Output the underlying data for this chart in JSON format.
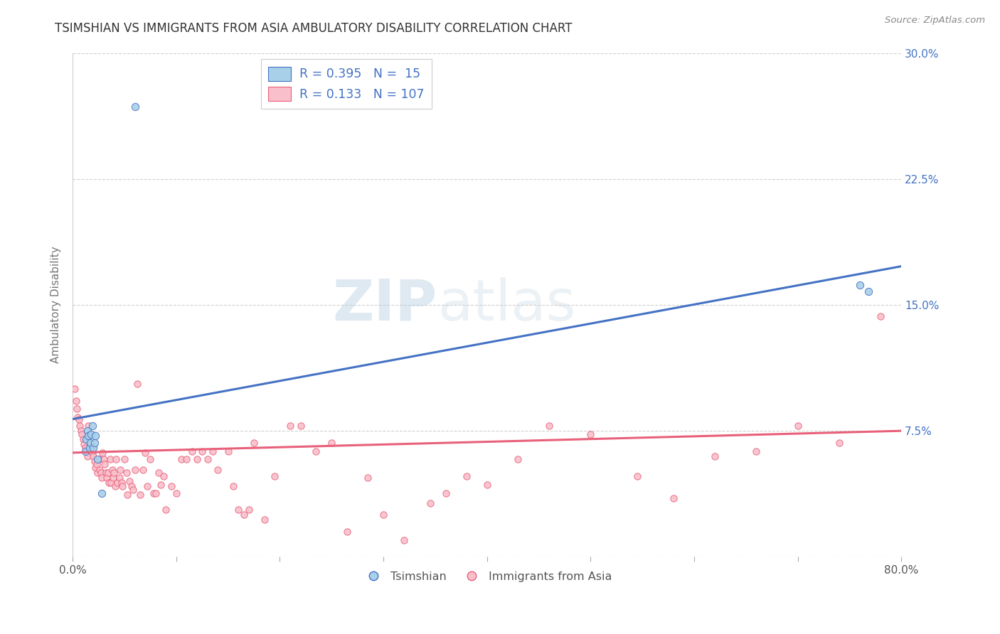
{
  "title": "TSIMSHIAN VS IMMIGRANTS FROM ASIA AMBULATORY DISABILITY CORRELATION CHART",
  "source": "Source: ZipAtlas.com",
  "ylabel": "Ambulatory Disability",
  "xmin": 0.0,
  "xmax": 0.8,
  "ymin": 0.0,
  "ymax": 0.3,
  "yticks": [
    0.0,
    0.075,
    0.15,
    0.225,
    0.3
  ],
  "ytick_labels": [
    "",
    "7.5%",
    "15.0%",
    "22.5%",
    "30.0%"
  ],
  "xtick_positions": [
    0.0,
    0.1,
    0.2,
    0.3,
    0.4,
    0.5,
    0.6,
    0.7,
    0.8
  ],
  "xtick_labels": [
    "0.0%",
    "",
    "",
    "",
    "",
    "",
    "",
    "",
    "80.0%"
  ],
  "color_blue": "#a8d0e8",
  "color_pink": "#f9c0cb",
  "line_blue": "#4472c4",
  "line_pink": "#e8607a",
  "watermark_zip": "ZIP",
  "watermark_atlas": "atlas",
  "legend_labels": [
    "Tsimshian",
    "Immigrants from Asia"
  ],
  "tsimshian_x": [
    0.012,
    0.013,
    0.014,
    0.015,
    0.016,
    0.017,
    0.018,
    0.019,
    0.02,
    0.021,
    0.022,
    0.024,
    0.028,
    0.06,
    0.76,
    0.768
  ],
  "tsimshian_y": [
    0.063,
    0.07,
    0.075,
    0.072,
    0.065,
    0.068,
    0.073,
    0.078,
    0.065,
    0.068,
    0.072,
    0.058,
    0.038,
    0.268,
    0.162,
    0.158
  ],
  "asia_x": [
    0.002,
    0.003,
    0.004,
    0.005,
    0.006,
    0.007,
    0.008,
    0.009,
    0.01,
    0.011,
    0.012,
    0.013,
    0.014,
    0.015,
    0.016,
    0.017,
    0.018,
    0.019,
    0.02,
    0.021,
    0.022,
    0.023,
    0.024,
    0.025,
    0.026,
    0.027,
    0.028,
    0.029,
    0.03,
    0.031,
    0.032,
    0.033,
    0.034,
    0.035,
    0.036,
    0.037,
    0.038,
    0.039,
    0.04,
    0.041,
    0.042,
    0.043,
    0.045,
    0.046,
    0.047,
    0.048,
    0.05,
    0.052,
    0.053,
    0.055,
    0.057,
    0.058,
    0.06,
    0.062,
    0.065,
    0.068,
    0.07,
    0.072,
    0.075,
    0.078,
    0.08,
    0.083,
    0.085,
    0.088,
    0.09,
    0.095,
    0.1,
    0.105,
    0.11,
    0.115,
    0.12,
    0.125,
    0.13,
    0.135,
    0.14,
    0.15,
    0.155,
    0.16,
    0.165,
    0.17,
    0.175,
    0.185,
    0.195,
    0.21,
    0.22,
    0.235,
    0.25,
    0.265,
    0.285,
    0.3,
    0.32,
    0.345,
    0.36,
    0.38,
    0.4,
    0.43,
    0.46,
    0.5,
    0.545,
    0.58,
    0.62,
    0.66,
    0.7,
    0.74,
    0.78
  ],
  "asia_y": [
    0.1,
    0.093,
    0.088,
    0.083,
    0.082,
    0.078,
    0.075,
    0.073,
    0.07,
    0.067,
    0.065,
    0.063,
    0.06,
    0.078,
    0.073,
    0.068,
    0.065,
    0.062,
    0.06,
    0.057,
    0.053,
    0.055,
    0.05,
    0.058,
    0.052,
    0.05,
    0.047,
    0.062,
    0.058,
    0.055,
    0.05,
    0.047,
    0.05,
    0.044,
    0.058,
    0.044,
    0.052,
    0.047,
    0.05,
    0.042,
    0.058,
    0.044,
    0.047,
    0.052,
    0.044,
    0.042,
    0.058,
    0.05,
    0.037,
    0.045,
    0.042,
    0.04,
    0.052,
    0.103,
    0.037,
    0.052,
    0.062,
    0.042,
    0.058,
    0.038,
    0.038,
    0.05,
    0.043,
    0.048,
    0.028,
    0.042,
    0.038,
    0.058,
    0.058,
    0.063,
    0.058,
    0.063,
    0.058,
    0.063,
    0.052,
    0.063,
    0.042,
    0.028,
    0.025,
    0.028,
    0.068,
    0.022,
    0.048,
    0.078,
    0.078,
    0.063,
    0.068,
    0.015,
    0.047,
    0.025,
    0.01,
    0.032,
    0.038,
    0.048,
    0.043,
    0.058,
    0.078,
    0.073,
    0.048,
    0.035,
    0.06,
    0.063,
    0.078,
    0.068,
    0.143
  ],
  "blue_trend_x": [
    0.0,
    0.8
  ],
  "blue_trend_y": [
    0.082,
    0.173
  ],
  "pink_trend_x": [
    0.0,
    0.8
  ],
  "pink_trend_y": [
    0.062,
    0.075
  ],
  "bg_color": "#ffffff",
  "grid_color": "#d0d0d0",
  "title_color": "#333333",
  "axis_label_color": "#777777",
  "tick_color_right": "#4472c4",
  "marker_size_blue": 55,
  "marker_size_pink": 45
}
